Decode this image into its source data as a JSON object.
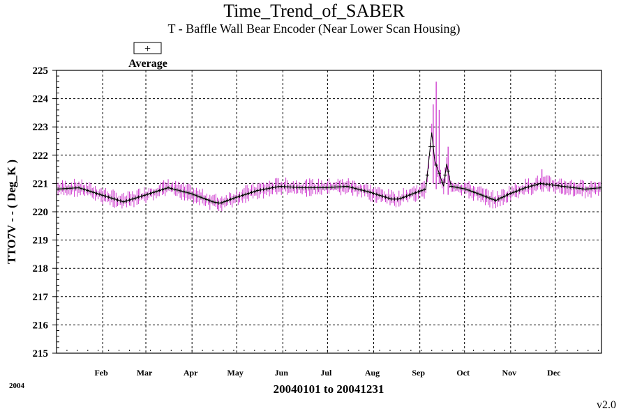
{
  "chart_data": {
    "type": "line",
    "title": "Time_Trend_of_SABER",
    "subtitle": "T - Baffle Wall Bear Encoder (Near Lower Scan Housing)",
    "xlabel": "20040101 to 20041231",
    "ylabel": "TTO7V  - - ( Deg_K )",
    "year_label": "2004",
    "version": "v2.0",
    "ylim": [
      215,
      225
    ],
    "yticks": [
      215,
      216,
      217,
      218,
      219,
      220,
      221,
      222,
      223,
      224,
      225
    ],
    "xlim_days": [
      0,
      366
    ],
    "grid": true,
    "legend_position": "top-left",
    "months": [
      {
        "label": "Feb",
        "day": 31
      },
      {
        "label": "Mar",
        "day": 60
      },
      {
        "label": "Apr",
        "day": 91
      },
      {
        "label": "May",
        "day": 121
      },
      {
        "label": "Jun",
        "day": 152
      },
      {
        "label": "Jul",
        "day": 182
      },
      {
        "label": "Aug",
        "day": 213
      },
      {
        "label": "Sep",
        "day": 244
      },
      {
        "label": "Oct",
        "day": 274
      },
      {
        "label": "Nov",
        "day": 305
      },
      {
        "label": "Dec",
        "day": 335
      }
    ],
    "series": [
      {
        "name": "Average",
        "marker": "+",
        "x_day": [
          0,
          15,
          30,
          45,
          60,
          75,
          90,
          105,
          110,
          120,
          135,
          150,
          165,
          180,
          195,
          210,
          225,
          230,
          240,
          248,
          252,
          254,
          256,
          260,
          262,
          265,
          275,
          285,
          295,
          305,
          315,
          325,
          340,
          355,
          366
        ],
        "y": [
          220.8,
          220.85,
          220.6,
          220.35,
          220.6,
          220.85,
          220.65,
          220.35,
          220.3,
          220.5,
          220.75,
          220.9,
          220.85,
          220.85,
          220.9,
          220.7,
          220.45,
          220.45,
          220.65,
          220.8,
          222.8,
          221.8,
          221.5,
          220.9,
          221.7,
          220.9,
          220.8,
          220.6,
          220.4,
          220.65,
          220.85,
          221.0,
          220.9,
          220.8,
          220.85
        ]
      }
    ],
    "range_spikes": [
      {
        "x_day": 253,
        "min": 221.0,
        "max": 223.8
      },
      {
        "x_day": 255,
        "min": 220.8,
        "max": 224.6
      },
      {
        "x_day": 257,
        "min": 221.0,
        "max": 223.6
      },
      {
        "x_day": 263,
        "min": 220.6,
        "max": 222.3
      },
      {
        "x_day": 326,
        "min": 220.8,
        "max": 221.5
      }
    ],
    "colors": {
      "series": "#000000",
      "range": "#cc33cc",
      "grid": "#000000",
      "background": "#ffffff"
    }
  }
}
